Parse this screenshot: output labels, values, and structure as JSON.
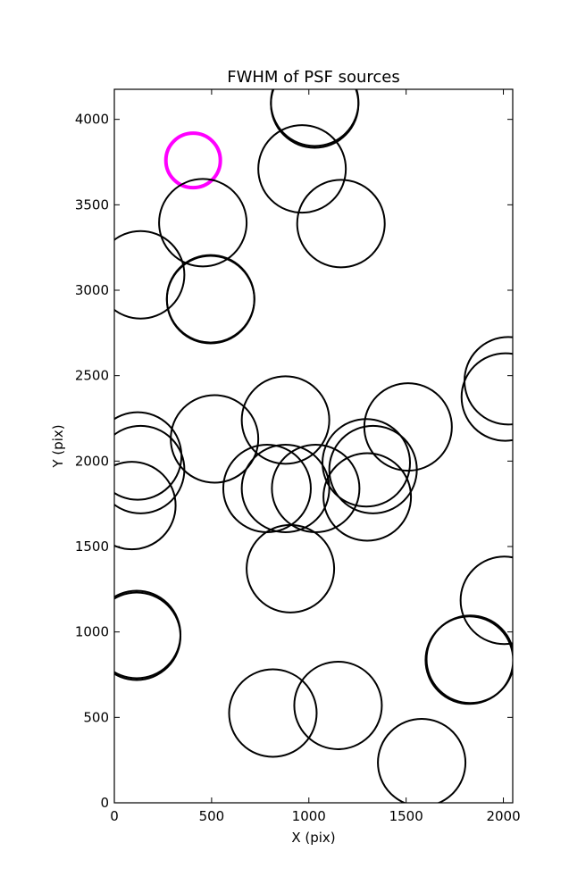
{
  "chart_data": {
    "type": "scatter",
    "title": "FWHM of PSF sources",
    "xlabel": "X (pix)",
    "ylabel": "Y (pix)",
    "xlim": [
      0,
      2048
    ],
    "ylim": [
      0,
      4176
    ],
    "xticks": [
      0,
      500,
      1000,
      1500,
      2000
    ],
    "yticks": [
      0,
      500,
      1000,
      1500,
      2000,
      2500,
      3000,
      3500,
      4000
    ],
    "grid": false,
    "marker": "open circle",
    "sources": [
      {
        "x": 1030,
        "y": 4090,
        "fwhm": 225,
        "color": "#000000"
      },
      {
        "x": 1030,
        "y": 4100,
        "fwhm": 225,
        "color": "#000000"
      },
      {
        "x": 405,
        "y": 3760,
        "fwhm": 140,
        "color": "#ff00ff"
      },
      {
        "x": 965,
        "y": 3710,
        "fwhm": 225,
        "color": "#000000"
      },
      {
        "x": 455,
        "y": 3395,
        "fwhm": 225,
        "color": "#000000"
      },
      {
        "x": 1165,
        "y": 3390,
        "fwhm": 225,
        "color": "#000000"
      },
      {
        "x": 135,
        "y": 3090,
        "fwhm": 225,
        "color": "#000000"
      },
      {
        "x": 495,
        "y": 2950,
        "fwhm": 225,
        "color": "#000000"
      },
      {
        "x": 495,
        "y": 2945,
        "fwhm": 225,
        "color": "#000000"
      },
      {
        "x": 2025,
        "y": 2470,
        "fwhm": 225,
        "color": "#000000"
      },
      {
        "x": 2010,
        "y": 2375,
        "fwhm": 225,
        "color": "#000000"
      },
      {
        "x": 880,
        "y": 2240,
        "fwhm": 225,
        "color": "#000000"
      },
      {
        "x": 1510,
        "y": 2200,
        "fwhm": 225,
        "color": "#000000"
      },
      {
        "x": 515,
        "y": 2130,
        "fwhm": 225,
        "color": "#000000"
      },
      {
        "x": 120,
        "y": 2030,
        "fwhm": 225,
        "color": "#000000"
      },
      {
        "x": 135,
        "y": 1950,
        "fwhm": 225,
        "color": "#000000"
      },
      {
        "x": 1295,
        "y": 1990,
        "fwhm": 225,
        "color": "#000000"
      },
      {
        "x": 1330,
        "y": 1950,
        "fwhm": 225,
        "color": "#000000"
      },
      {
        "x": 785,
        "y": 1840,
        "fwhm": 225,
        "color": "#000000"
      },
      {
        "x": 880,
        "y": 1840,
        "fwhm": 225,
        "color": "#000000"
      },
      {
        "x": 1035,
        "y": 1840,
        "fwhm": 225,
        "color": "#000000"
      },
      {
        "x": 1300,
        "y": 1790,
        "fwhm": 225,
        "color": "#000000"
      },
      {
        "x": 90,
        "y": 1740,
        "fwhm": 225,
        "color": "#000000"
      },
      {
        "x": 905,
        "y": 1370,
        "fwhm": 225,
        "color": "#000000"
      },
      {
        "x": 2005,
        "y": 1185,
        "fwhm": 225,
        "color": "#000000"
      },
      {
        "x": 115,
        "y": 985,
        "fwhm": 225,
        "color": "#000000"
      },
      {
        "x": 115,
        "y": 975,
        "fwhm": 225,
        "color": "#000000"
      },
      {
        "x": 1830,
        "y": 840,
        "fwhm": 225,
        "color": "#000000"
      },
      {
        "x": 1825,
        "y": 835,
        "fwhm": 225,
        "color": "#000000"
      },
      {
        "x": 1150,
        "y": 570,
        "fwhm": 225,
        "color": "#000000"
      },
      {
        "x": 815,
        "y": 525,
        "fwhm": 225,
        "color": "#000000"
      },
      {
        "x": 1580,
        "y": 235,
        "fwhm": 225,
        "color": "#000000"
      }
    ]
  }
}
